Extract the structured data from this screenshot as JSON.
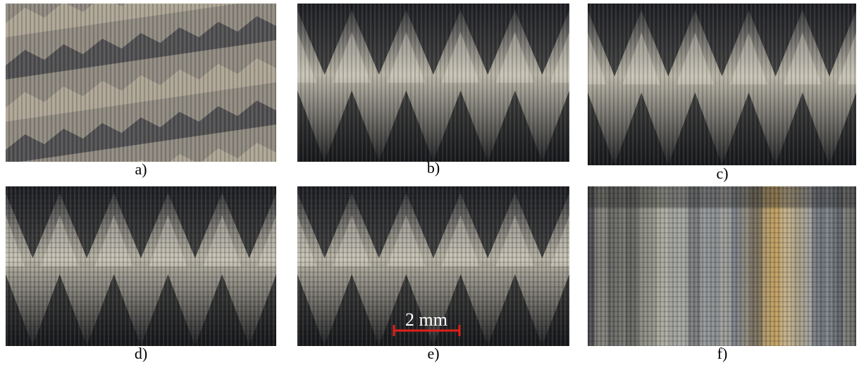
{
  "panels": [
    {
      "label": "a)"
    },
    {
      "label": "b)"
    },
    {
      "label": "c)"
    },
    {
      "label": "d)"
    },
    {
      "label": "e)"
    },
    {
      "label": "f)"
    }
  ],
  "scale_bar": {
    "label": "2 mm"
  }
}
